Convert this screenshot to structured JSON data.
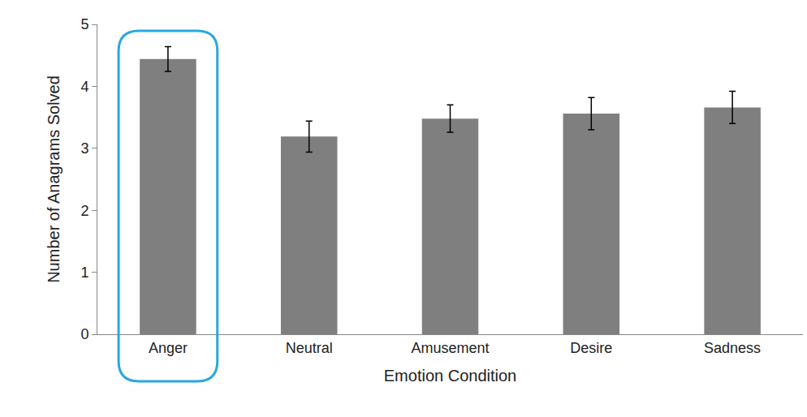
{
  "chart_data": {
    "type": "bar",
    "x_label": "Emotion Condition",
    "y_label": "Number of Anagrams Solved",
    "categories": [
      "Anger",
      "Neutral",
      "Amusement",
      "Desire",
      "Sadness"
    ],
    "values": [
      4.44,
      3.19,
      3.48,
      3.56,
      3.66
    ],
    "errors": [
      0.2,
      0.25,
      0.22,
      0.26,
      0.26
    ],
    "color": "#7f7f7f",
    "ylim": [
      0,
      5
    ],
    "yticks": [
      0,
      1,
      2,
      3,
      4,
      5
    ],
    "grid": false
  }
}
